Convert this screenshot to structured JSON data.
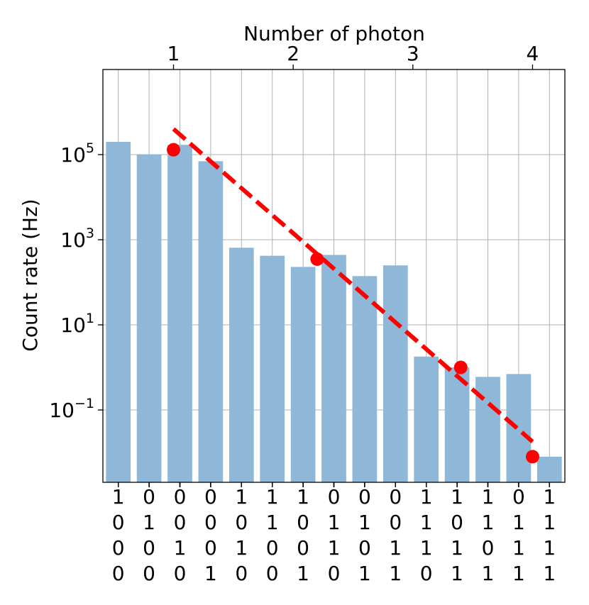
{
  "chart_data": {
    "type": "bar",
    "top_xlabel": "Number of photon",
    "ylabel": "Count rate (Hz)",
    "yscale": "log",
    "ylim": [
      0.002,
      10000000
    ],
    "y_ticks": [
      {
        "value": 0.1,
        "base": "10",
        "exp": "−1"
      },
      {
        "value": 10,
        "base": "10",
        "exp": "1"
      },
      {
        "value": 1000,
        "base": "10",
        "exp": "3"
      },
      {
        "value": 100000,
        "base": "10",
        "exp": "5"
      }
    ],
    "categories": [
      "1000",
      "0100",
      "0010",
      "0001",
      "1010",
      "1100",
      "1001",
      "0110",
      "0101",
      "0011",
      "1110",
      "1011",
      "1101",
      "0111",
      "1111"
    ],
    "category_label_rows": [
      [
        "1",
        "0",
        "0",
        "0",
        "1",
        "1",
        "1",
        "0",
        "0",
        "0",
        "1",
        "1",
        "1",
        "0",
        "1"
      ],
      [
        "0",
        "1",
        "0",
        "0",
        "0",
        "1",
        "0",
        "1",
        "1",
        "0",
        "1",
        "0",
        "1",
        "1",
        "1"
      ],
      [
        "0",
        "0",
        "1",
        "0",
        "1",
        "0",
        "0",
        "1",
        "0",
        "1",
        "1",
        "1",
        "0",
        "1",
        "1"
      ],
      [
        "0",
        "0",
        "0",
        "1",
        "0",
        "0",
        "1",
        "0",
        "1",
        "1",
        "0",
        "1",
        "1",
        "1",
        "1"
      ]
    ],
    "values": [
      200000,
      100000,
      170000,
      70000,
      650,
      420,
      230,
      440,
      140,
      250,
      1.8,
      1.0,
      0.6,
      0.7,
      0.008
    ],
    "bar_color": "#8fb8d8",
    "top_axis": {
      "ticks": [
        1,
        2,
        3,
        4
      ],
      "labels": [
        "1",
        "2",
        "3",
        "4"
      ],
      "xlim": [
        0.41,
        4.27
      ]
    },
    "points": {
      "name": "",
      "x": [
        1,
        2.2,
        3.4,
        4
      ],
      "y": [
        130000,
        350,
        1.0,
        0.008
      ],
      "color": "#ff0000"
    },
    "fit_line": {
      "x": [
        1,
        4
      ],
      "y": [
        400000,
        0.018
      ],
      "color": "#ff0000",
      "style": "dashed"
    },
    "grid": true
  }
}
